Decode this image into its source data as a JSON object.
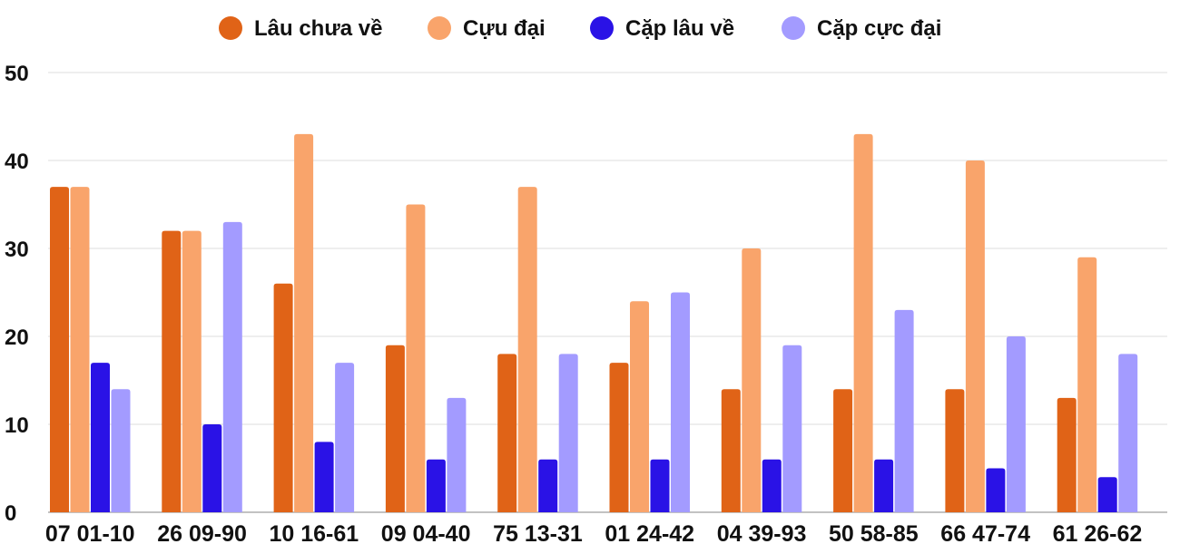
{
  "chart_data": {
    "type": "bar",
    "categories": [
      "07 01-10",
      "26 09-90",
      "10 16-61",
      "09 04-40",
      "75 13-31",
      "01 24-42",
      "04 39-93",
      "50 58-85",
      "66 47-74",
      "61 26-62"
    ],
    "series": [
      {
        "name": "Lâu chưa về",
        "color": "#e06317",
        "values": [
          37,
          32,
          26,
          19,
          18,
          17,
          14,
          14,
          14,
          13
        ]
      },
      {
        "name": "Cựu đại",
        "color": "#f9a46b",
        "values": [
          37,
          32,
          43,
          35,
          37,
          24,
          30,
          43,
          40,
          29
        ]
      },
      {
        "name": "Cặp lâu về",
        "color": "#2a12e6",
        "values": [
          17,
          10,
          8,
          6,
          6,
          6,
          6,
          6,
          5,
          4
        ]
      },
      {
        "name": "Cặp cực đại",
        "color": "#a39bff",
        "values": [
          14,
          33,
          17,
          13,
          18,
          25,
          19,
          23,
          20,
          18
        ]
      }
    ],
    "yticks": [
      "0",
      "10",
      "20",
      "30",
      "40",
      "50"
    ],
    "ylim": [
      0,
      50
    ],
    "grid": true,
    "legend_position": "top-center",
    "title": "",
    "xlabel": "",
    "ylabel": ""
  }
}
